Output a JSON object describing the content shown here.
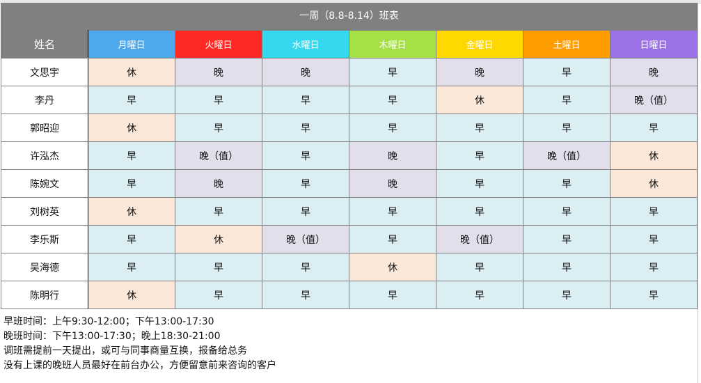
{
  "title": "一周（8.8-8.14）班表",
  "name_header": "姓名",
  "days": [
    {
      "label": "月曜日",
      "color": "#4ea8ec"
    },
    {
      "label": "火曜日",
      "color": "#ff2a23"
    },
    {
      "label": "水曜日",
      "color": "#35d8ee"
    },
    {
      "label": "木曜日",
      "color": "#a5e047"
    },
    {
      "label": "金曜日",
      "color": "#ffd800"
    },
    {
      "label": "土曜日",
      "color": "#ff9c00"
    },
    {
      "label": "日曜日",
      "color": "#9a72e6"
    }
  ],
  "shift_colors": {
    "休": "#fce8d9",
    "晚": "#e3deec",
    "晚（值）": "#e3deec",
    "早": "#dbeef3"
  },
  "rows": [
    {
      "name": "文思宇",
      "shifts": [
        "休",
        "晚",
        "晚",
        "早",
        "晚",
        "早",
        "晚"
      ]
    },
    {
      "name": "李丹",
      "shifts": [
        "早",
        "早",
        "早",
        "早",
        "休",
        "早",
        "晚（值）"
      ]
    },
    {
      "name": "郭昭迎",
      "shifts": [
        "休",
        "早",
        "早",
        "早",
        "早",
        "早",
        "早"
      ]
    },
    {
      "name": "许泓杰",
      "shifts": [
        "早",
        "晚（值）",
        "早",
        "晚",
        "早",
        "晚（值）",
        "休"
      ]
    },
    {
      "name": "陈婉文",
      "shifts": [
        "早",
        "晚",
        "早",
        "晚",
        "早",
        "早",
        "休"
      ]
    },
    {
      "name": "刘树英",
      "shifts": [
        "休",
        "早",
        "早",
        "早",
        "早",
        "早",
        "早"
      ]
    },
    {
      "name": "李乐斯",
      "shifts": [
        "早",
        "休",
        "晚（值）",
        "早",
        "晚（值）",
        "早",
        "早"
      ]
    },
    {
      "name": "吴海德",
      "shifts": [
        "早",
        "早",
        "早",
        "休",
        "早",
        "早",
        "早"
      ]
    },
    {
      "name": "陈明行",
      "shifts": [
        "休",
        "早",
        "早",
        "早",
        "早",
        "早",
        "早"
      ]
    }
  ],
  "notes": [
    "早班时间：上午9:30-12:00；下午13:00-17:30",
    "晚班时间：下午13:00-17:30；晚上18:30-21:00",
    "调班需提前一天提出，或可与同事商量互换，报备给总务",
    "没有上课的晚班人员最好在前台办公，方便留意前来咨询的客户"
  ]
}
